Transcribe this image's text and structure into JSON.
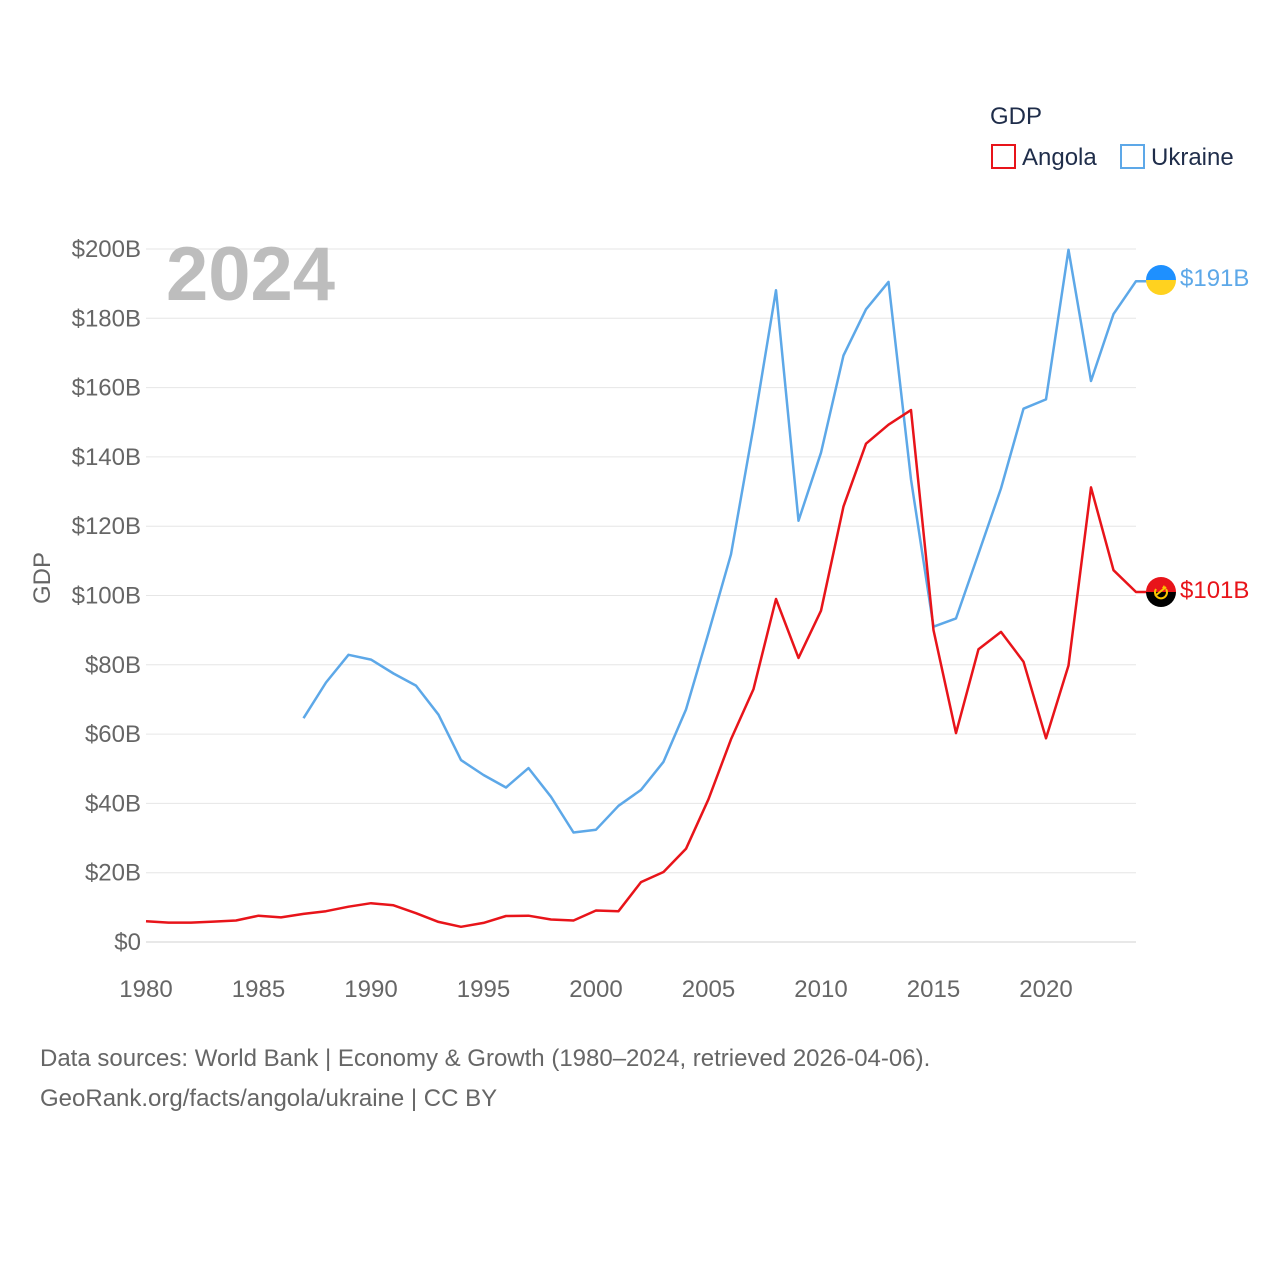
{
  "chart_data": {
    "type": "line",
    "legend_title": "GDP",
    "ylabel": "GDP",
    "xlabel": "",
    "current_year_label": "2024",
    "xlim": [
      1980,
      2024
    ],
    "ylim": [
      0,
      200
    ],
    "x_ticks": [
      1980,
      1985,
      1990,
      1995,
      2000,
      2005,
      2010,
      2015,
      2020
    ],
    "y_ticks": [
      {
        "value": 0,
        "label": "$0"
      },
      {
        "value": 20,
        "label": "$20B"
      },
      {
        "value": 40,
        "label": "$40B"
      },
      {
        "value": 60,
        "label": "$60B"
      },
      {
        "value": 80,
        "label": "$80B"
      },
      {
        "value": 100,
        "label": "$100B"
      },
      {
        "value": 120,
        "label": "$120B"
      },
      {
        "value": 140,
        "label": "$140B"
      },
      {
        "value": 160,
        "label": "$160B"
      },
      {
        "value": 180,
        "label": "$180B"
      },
      {
        "value": 200,
        "label": "$200B"
      }
    ],
    "legend_placement": "top-right",
    "series": [
      {
        "name": "Angola",
        "color": "#e8141a",
        "icon": "angola-flag-icon",
        "end_label": "$101B",
        "x": [
          1980,
          1981,
          1982,
          1983,
          1984,
          1985,
          1986,
          1987,
          1988,
          1989,
          1990,
          1991,
          1992,
          1993,
          1994,
          1995,
          1996,
          1997,
          1998,
          1999,
          2000,
          2001,
          2002,
          2003,
          2004,
          2005,
          2006,
          2007,
          2008,
          2009,
          2010,
          2011,
          2012,
          2013,
          2014,
          2015,
          2016,
          2017,
          2018,
          2019,
          2020,
          2021,
          2022,
          2023,
          2024
        ],
        "values": [
          6.0,
          5.6,
          5.6,
          5.9,
          6.2,
          7.6,
          7.1,
          8.1,
          8.9,
          10.2,
          11.2,
          10.6,
          8.3,
          5.8,
          4.4,
          5.5,
          7.5,
          7.6,
          6.5,
          6.2,
          9.1,
          8.9,
          17.3,
          20.2,
          26.9,
          41.2,
          58.5,
          73.0,
          99.0,
          82.0,
          95.6,
          125.7,
          143.8,
          149.3,
          153.5,
          90.0,
          60.3,
          84.5,
          89.5,
          80.9,
          58.8,
          79.8,
          131.2,
          107.3,
          101.0
        ]
      },
      {
        "name": "Ukraine",
        "color": "#5da8e8",
        "icon": "ukraine-flag-icon",
        "end_label": "$191B",
        "x": [
          1987,
          1988,
          1989,
          1990,
          1991,
          1992,
          1993,
          1994,
          1995,
          1996,
          1997,
          1998,
          1999,
          2000,
          2001,
          2002,
          2003,
          2004,
          2005,
          2006,
          2007,
          2008,
          2009,
          2010,
          2011,
          2012,
          2013,
          2014,
          2015,
          2016,
          2017,
          2018,
          2019,
          2020,
          2021,
          2022,
          2023,
          2024
        ],
        "values": [
          64.6,
          74.9,
          82.9,
          81.5,
          77.5,
          74.0,
          65.6,
          52.5,
          48.2,
          44.6,
          50.2,
          41.9,
          31.6,
          32.4,
          39.3,
          43.9,
          52.0,
          67.1,
          89.2,
          111.9,
          148.7,
          188.1,
          121.6,
          141.2,
          169.3,
          182.6,
          190.5,
          133.5,
          91.0,
          93.4,
          112.1,
          130.9,
          153.9,
          156.6,
          199.8,
          161.9,
          181.2,
          190.7
        ]
      }
    ],
    "source_line_1": "Data sources: World Bank | Economy & Growth (1980–2024, retrieved 2026-04-06).",
    "source_line_2": "GeoRank.org/facts/angola/ukraine | CC BY"
  }
}
